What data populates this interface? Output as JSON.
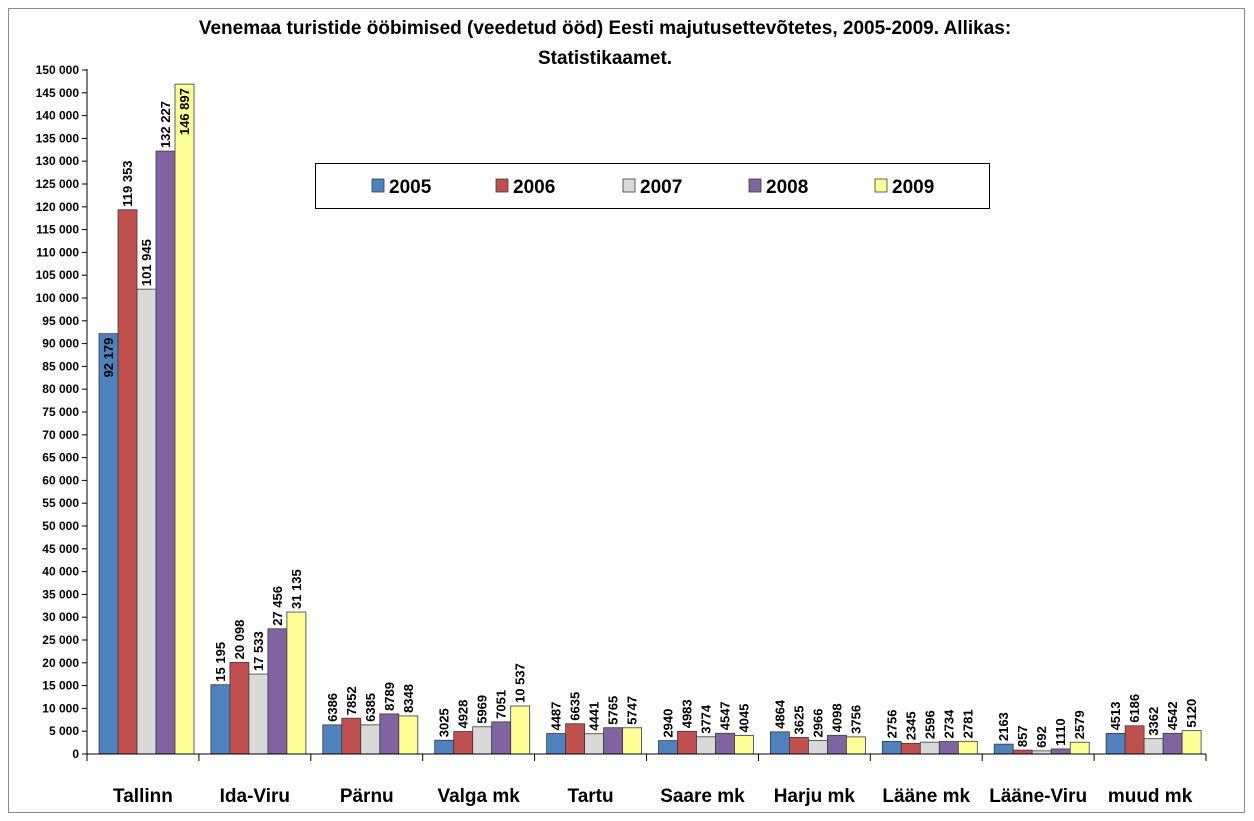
{
  "chart_data": {
    "type": "bar",
    "title": "Venemaa turistide ööbimised (veedetud ööd) Eesti majutusettevõtetes, 2005-2009. Allikas: Statistikaamet.",
    "title_lines": [
      "Venemaa turistide ööbimised (veedetud ööd) Eesti majutusettevõtetes, 2005-2009. Allikas:",
      "Statistikaamet."
    ],
    "xlabel": "",
    "ylabel": "",
    "ylim": [
      0,
      150000
    ],
    "ytick_step": 5000,
    "ytick_labels": [
      "0",
      "5 000",
      "10 000",
      "15 000",
      "20 000",
      "25 000",
      "30 000",
      "35 000",
      "40 000",
      "45 000",
      "50 000",
      "55 000",
      "60 000",
      "65 000",
      "70 000",
      "75 000",
      "80 000",
      "85 000",
      "90 000",
      "95 000",
      "100 000",
      "105 000",
      "110 000",
      "115 000",
      "120 000",
      "125 000",
      "130 000",
      "135 000",
      "140 000",
      "145 000",
      "150 000"
    ],
    "grid": false,
    "legend_position": "top-center",
    "categories": [
      "Tallinn",
      "Ida-Viru",
      "Pärnu",
      "Valga mk",
      "Tartu",
      "Saare mk",
      "Harju mk",
      "Lääne mk",
      "Lääne-Viru",
      "muud mk"
    ],
    "series": [
      {
        "name": "2005",
        "color": "#4F81BD",
        "values": [
          92179,
          15195,
          6386,
          3025,
          4487,
          2940,
          4864,
          2756,
          2163,
          4513
        ],
        "labels": [
          "92 179",
          "15 195",
          "6386",
          "3025",
          "4487",
          "2940",
          "4864",
          "2756",
          "2163",
          "4513"
        ]
      },
      {
        "name": "2006",
        "color": "#C0504D",
        "values": [
          119353,
          20098,
          7852,
          4928,
          6635,
          4983,
          3625,
          2345,
          857,
          6186
        ],
        "labels": [
          "119 353",
          "20 098",
          "7852",
          "4928",
          "6635",
          "4983",
          "3625",
          "2345",
          "857",
          "6186"
        ]
      },
      {
        "name": "2007",
        "color": "#D9D9D9",
        "values": [
          101945,
          17533,
          6385,
          5969,
          4441,
          3774,
          2966,
          2596,
          692,
          3362
        ],
        "labels": [
          "101 945",
          "17 533",
          "6385",
          "5969",
          "4441",
          "3774",
          "2966",
          "2596",
          "692",
          "3362"
        ]
      },
      {
        "name": "2008",
        "color": "#8064A2",
        "values": [
          132227,
          27456,
          8789,
          7051,
          5765,
          4547,
          4098,
          2734,
          1110,
          4542
        ],
        "labels": [
          "132 227",
          "27 456",
          "8789",
          "7051",
          "5765",
          "4547",
          "4098",
          "2734",
          "1110",
          "4542"
        ]
      },
      {
        "name": "2009",
        "color": "#FFFF99",
        "values": [
          146897,
          31135,
          8348,
          10537,
          5747,
          4045,
          3756,
          2781,
          2579,
          5120
        ],
        "labels": [
          "146 897",
          "31 135",
          "8348",
          "10 537",
          "5747",
          "4045",
          "3756",
          "2781",
          "2579",
          "5120"
        ]
      }
    ],
    "inside_label_series_index": {
      "0": [
        0
      ],
      "4": [
        0
      ]
    }
  }
}
